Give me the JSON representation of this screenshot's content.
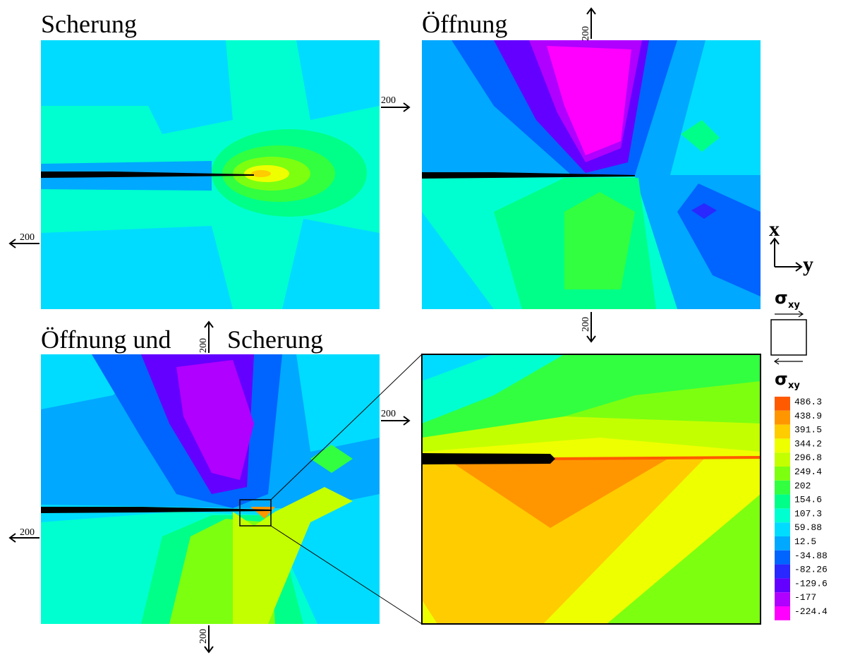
{
  "panels": [
    {
      "title": "Scherung"
    },
    {
      "title": "Öffnung"
    },
    {
      "title": "Öffnung und",
      "title2": "Scherung"
    }
  ],
  "scale_arrows": [
    "200",
    "200",
    "200",
    "200",
    "200",
    "200",
    "200",
    "200"
  ],
  "axes": {
    "x": "x",
    "y": "y"
  },
  "stress": {
    "symbol": "σ",
    "subscript": "xy"
  },
  "legend": [
    {
      "label": "486.3",
      "color": "#ff5a00"
    },
    {
      "label": "438.9",
      "color": "#ff9600"
    },
    {
      "label": "391.5",
      "color": "#ffcc00"
    },
    {
      "label": "344.2",
      "color": "#eeff00"
    },
    {
      "label": "296.8",
      "color": "#c4ff00"
    },
    {
      "label": "249.4",
      "color": "#7dff10"
    },
    {
      "label": "202",
      "color": "#32ff40"
    },
    {
      "label": "154.6",
      "color": "#00ff88"
    },
    {
      "label": "107.3",
      "color": "#00ffd0"
    },
    {
      "label": "59.88",
      "color": "#00dcff"
    },
    {
      "label": "12.5",
      "color": "#00a8ff"
    },
    {
      "label": "-34.88",
      "color": "#0064ff"
    },
    {
      "label": "-82.26",
      "color": "#2828ff"
    },
    {
      "label": "-129.6",
      "color": "#6400ff"
    },
    {
      "label": "-177",
      "color": "#b000ff"
    },
    {
      "label": "-224.4",
      "color": "#ff00ff"
    }
  ]
}
